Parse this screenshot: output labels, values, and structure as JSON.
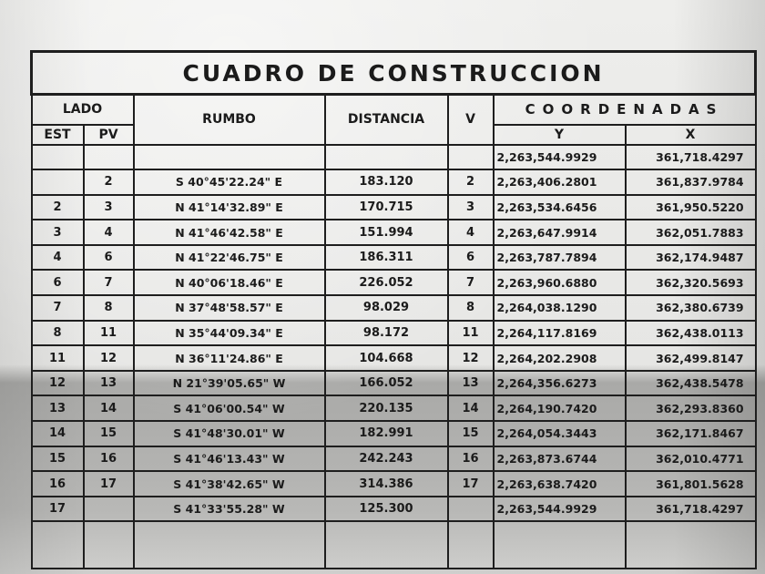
{
  "title": "CUADRO DE CONSTRUCCION",
  "headers": {
    "lado": "LADO",
    "est": "EST",
    "pv": "PV",
    "rumbo": "RUMBO",
    "distancia": "DISTANCIA",
    "v": "V",
    "coordenadas": "COORDENADAS",
    "y": "Y",
    "x": "X"
  },
  "rows": [
    {
      "est": "",
      "pv": "",
      "rumbo": "",
      "distancia": "",
      "v": "",
      "y": "2,263,544.9929",
      "x": "361,718.4297"
    },
    {
      "est": "",
      "pv": "2",
      "rumbo": "S 40°45'22.24\" E",
      "distancia": "183.120",
      "v": "2",
      "y": "2,263,406.2801",
      "x": "361,837.9784"
    },
    {
      "est": "2",
      "pv": "3",
      "rumbo": "N 41°14'32.89\" E",
      "distancia": "170.715",
      "v": "3",
      "y": "2,263,534.6456",
      "x": "361,950.5220"
    },
    {
      "est": "3",
      "pv": "4",
      "rumbo": "N 41°46'42.58\" E",
      "distancia": "151.994",
      "v": "4",
      "y": "2,263,647.9914",
      "x": "362,051.7883"
    },
    {
      "est": "4",
      "pv": "6",
      "rumbo": "N 41°22'46.75\" E",
      "distancia": "186.311",
      "v": "6",
      "y": "2,263,787.7894",
      "x": "362,174.9487"
    },
    {
      "est": "6",
      "pv": "7",
      "rumbo": "N 40°06'18.46\" E",
      "distancia": "226.052",
      "v": "7",
      "y": "2,263,960.6880",
      "x": "362,320.5693"
    },
    {
      "est": "7",
      "pv": "8",
      "rumbo": "N 37°48'58.57\" E",
      "distancia": "98.029",
      "v": "8",
      "y": "2,264,038.1290",
      "x": "362,380.6739"
    },
    {
      "est": "8",
      "pv": "11",
      "rumbo": "N 35°44'09.34\" E",
      "distancia": "98.172",
      "v": "11",
      "y": "2,264,117.8169",
      "x": "362,438.0113"
    },
    {
      "est": "11",
      "pv": "12",
      "rumbo": "N 36°11'24.86\" E",
      "distancia": "104.668",
      "v": "12",
      "y": "2,264,202.2908",
      "x": "362,499.8147"
    },
    {
      "est": "12",
      "pv": "13",
      "rumbo": "N 21°39'05.65\" W",
      "distancia": "166.052",
      "v": "13",
      "y": "2,264,356.6273",
      "x": "362,438.5478"
    },
    {
      "est": "13",
      "pv": "14",
      "rumbo": "S 41°06'00.54\" W",
      "distancia": "220.135",
      "v": "14",
      "y": "2,264,190.7420",
      "x": "362,293.8360"
    },
    {
      "est": "14",
      "pv": "15",
      "rumbo": "S 41°48'30.01\" W",
      "distancia": "182.991",
      "v": "15",
      "y": "2,264,054.3443",
      "x": "362,171.8467"
    },
    {
      "est": "15",
      "pv": "16",
      "rumbo": "S 41°46'13.43\" W",
      "distancia": "242.243",
      "v": "16",
      "y": "2,263,873.6744",
      "x": "362,010.4771"
    },
    {
      "est": "16",
      "pv": "17",
      "rumbo": "S 41°38'42.65\" W",
      "distancia": "314.386",
      "v": "17",
      "y": "2,263,638.7420",
      "x": "361,801.5628"
    },
    {
      "est": "17",
      "pv": "",
      "rumbo": "S 41°33'55.28\" W",
      "distancia": "125.300",
      "v": "",
      "y": "2,263,544.9929",
      "x": "361,718.4297"
    }
  ]
}
